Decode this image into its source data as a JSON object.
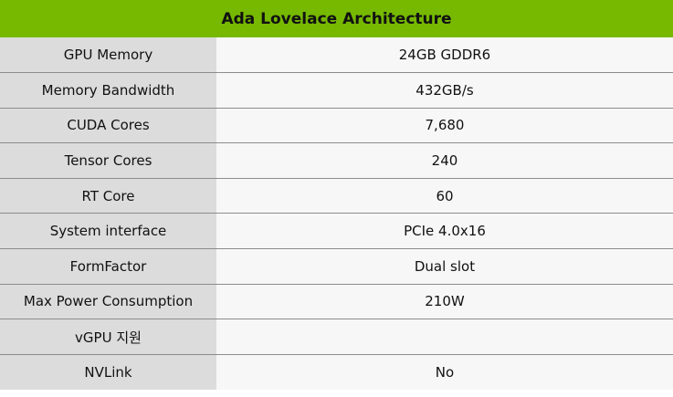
{
  "header": {
    "title": "Ada Lovelace Architecture"
  },
  "specs": [
    {
      "label": "GPU Memory",
      "value": "24GB GDDR6"
    },
    {
      "label": "Memory Bandwidth",
      "value": "432GB/s"
    },
    {
      "label": "CUDA Cores",
      "value": "7,680"
    },
    {
      "label": "Tensor Cores",
      "value": "240"
    },
    {
      "label": "RT Core",
      "value": "60"
    },
    {
      "label": "System interface",
      "value": "PCIe 4.0x16"
    },
    {
      "label": "FormFactor",
      "value": "Dual slot"
    },
    {
      "label": "Max Power Consumption",
      "value": "210W"
    },
    {
      "label": "vGPU 지원",
      "value": ""
    },
    {
      "label": "NVLink",
      "value": "No"
    }
  ]
}
